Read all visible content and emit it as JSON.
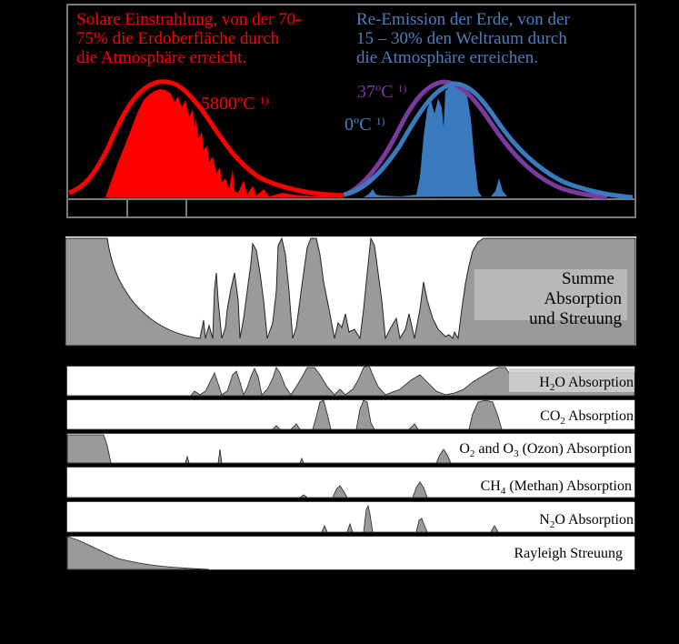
{
  "colors": {
    "solar": "#ff0000",
    "earth_blue": "#3a7bbf",
    "earth_blue_text": "#4a7fc1",
    "earth_purple": "#7a3a9e",
    "absorption_fill": "#9a9a9a",
    "panel_bg": "#ffffff"
  },
  "top_panel": {
    "solar_text": {
      "line1": "Solare Einstrahlung, von der 70-",
      "line2": "75% die Erdoberfläche durch",
      "line3": "die Atmosphäre erreicht."
    },
    "earth_text": {
      "line1": "Re-Emission der Erde, von der",
      "line2": "15 – 30% den Weltraum durch",
      "line3": "die Atmosphäre erreichen."
    },
    "temp_sun": "5800ºC",
    "temp_body": "37ºC",
    "temp_zero": "0ºC",
    "footnote_mark": "1)"
  },
  "sum_panel": {
    "line1": "Summe",
    "line2": "Absorption",
    "line3": "und Streuung"
  },
  "strip_labels": {
    "h2o_pre": "H",
    "h2o_sub": "2",
    "h2o_post": "O Absorption",
    "co2_pre": "CO",
    "co2_sub": "2",
    "co2_post": " Absorption",
    "o2_pre": "O",
    "o2_sub": "2",
    "o2_mid": " and O",
    "o3_sub": "3",
    "o2_post": " (Ozon) Absorption",
    "ch4_pre": "CH",
    "ch4_sub": "4",
    "ch4_post": " (Methan) Absorption",
    "n2o_pre": "N",
    "n2o_sub": "2",
    "n2o_post": "O Absorption",
    "rayleigh": "Rayleigh Streuung"
  }
}
